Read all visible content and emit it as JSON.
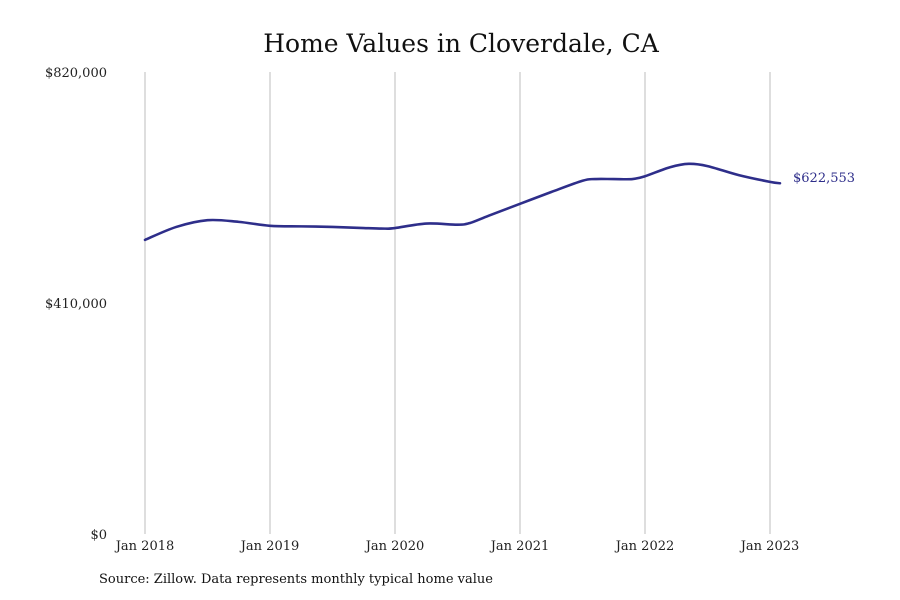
{
  "chart_data": {
    "type": "line",
    "title": "Home Values in Cloverdale, CA",
    "xlabel": "",
    "ylabel": "",
    "x_ticks": [
      "Jan 2018",
      "Jan 2019",
      "Jan 2020",
      "Jan 2021",
      "Jan 2022",
      "Jan 2023"
    ],
    "y_ticks": [
      "$820,000",
      "$410,000",
      "$0"
    ],
    "ylim": [
      0,
      820000
    ],
    "grid": "vertical",
    "series": [
      {
        "color": "#2e2e8a",
        "x": [
          2018.0,
          2018.25,
          2018.5,
          2018.75,
          2019.0,
          2019.25,
          2019.5,
          2019.75,
          2019.92,
          2020.0,
          2020.25,
          2020.5,
          2020.6,
          2020.75,
          2021.0,
          2021.25,
          2021.5,
          2021.6,
          2021.75,
          2021.9,
          2022.0,
          2022.2,
          2022.35,
          2022.5,
          2022.75,
          2023.0,
          2023.08
        ],
        "y": [
          522000,
          545000,
          557000,
          554000,
          547000,
          546000,
          545000,
          543000,
          542000,
          543000,
          551000,
          549000,
          552000,
          565000,
          586000,
          607000,
          627000,
          630000,
          630000,
          630000,
          635000,
          651000,
          657000,
          653000,
          637000,
          625000,
          622553
        ]
      }
    ],
    "end_label": "$622,553",
    "source": "Source: Zillow. Data represents monthly typical home value"
  }
}
